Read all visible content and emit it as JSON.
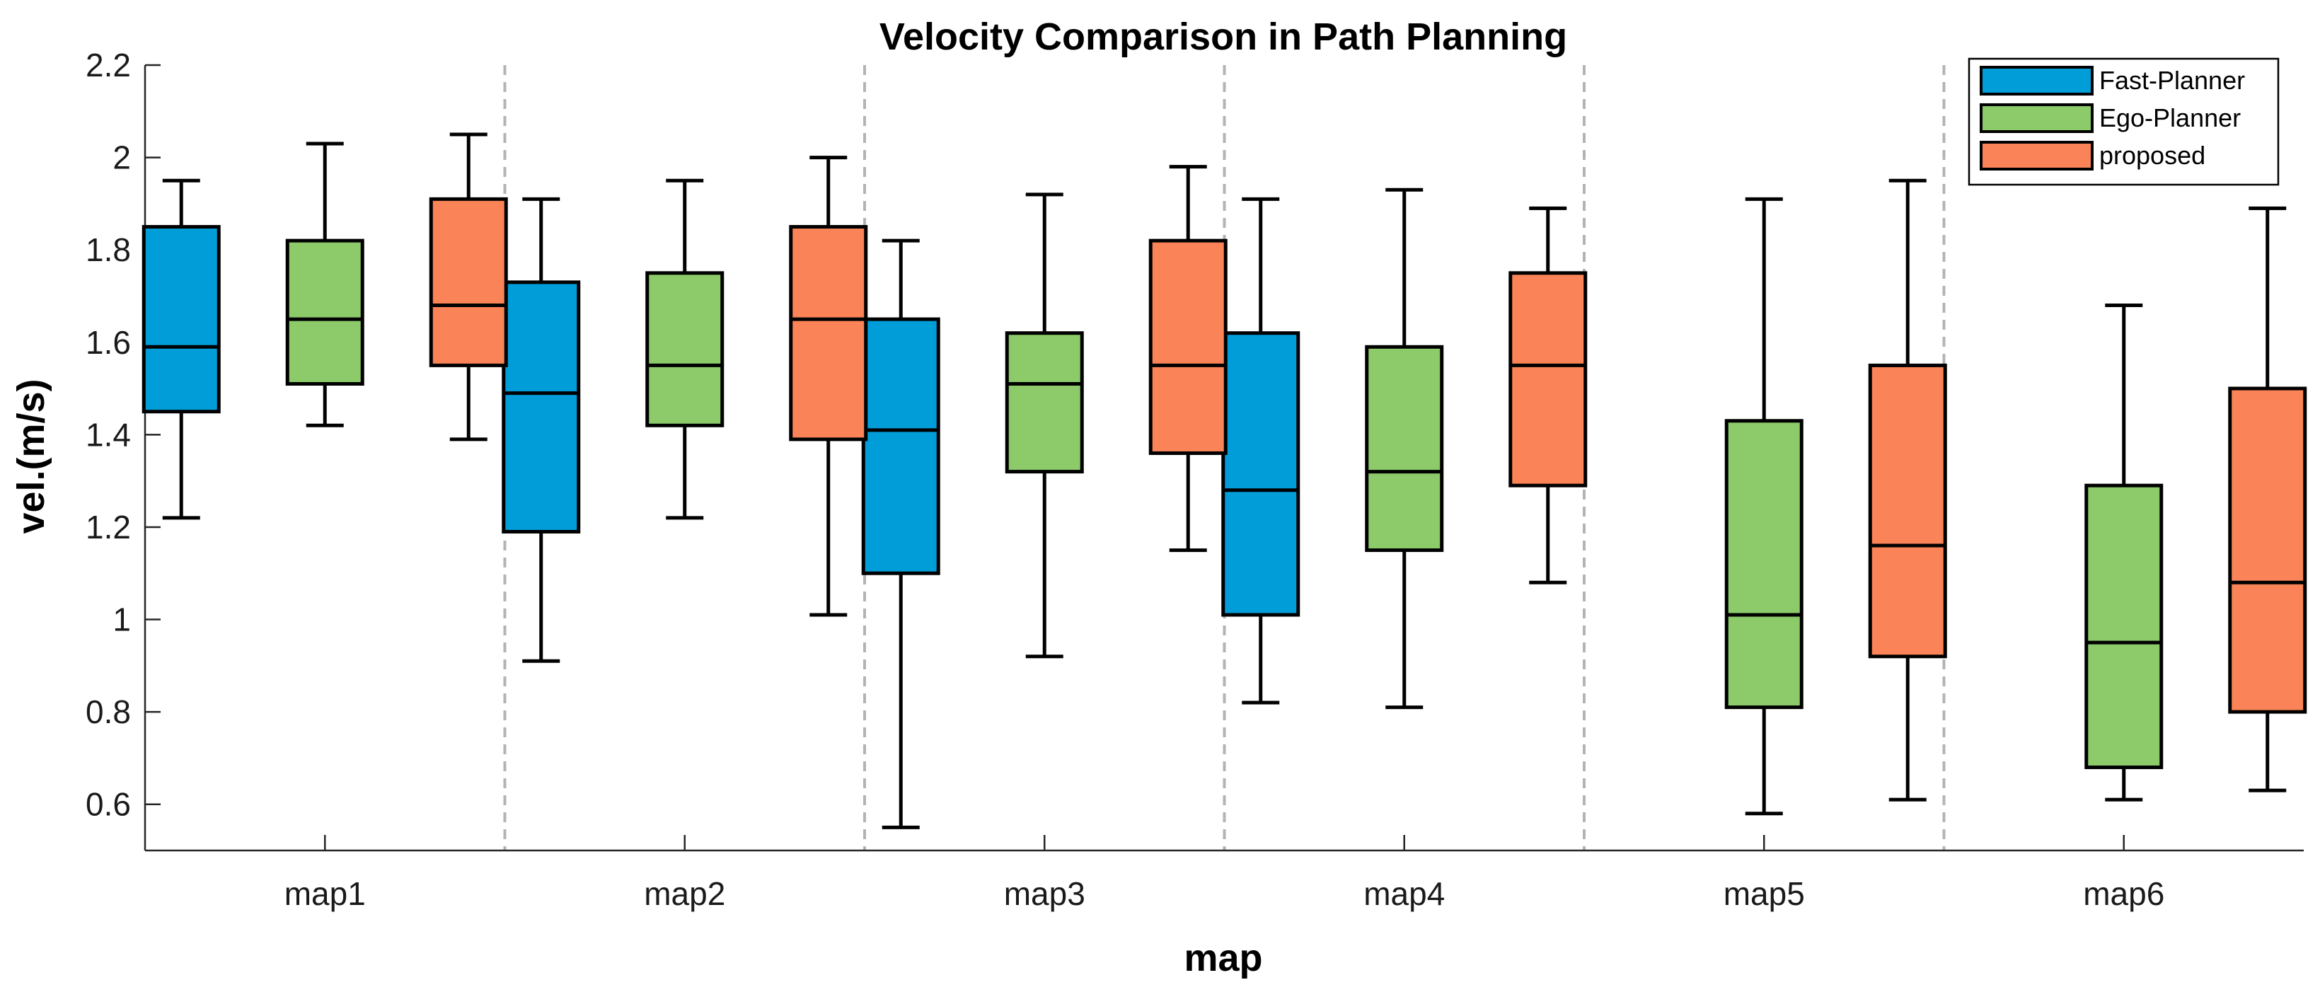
{
  "chart_data": {
    "type": "box",
    "title": "Velocity Comparison in Path Planning",
    "xlabel": "map",
    "ylabel": "vel.(m/s)",
    "ylim": [
      0.5,
      2.2
    ],
    "yticks": [
      0.6,
      0.8,
      1,
      1.2,
      1.4,
      1.6,
      1.8,
      2,
      2.2
    ],
    "ytick_labels": [
      "0.6",
      "0.8",
      "1",
      "1.2",
      "1.4",
      "1.6",
      "1.8",
      "2",
      "2.2"
    ],
    "categories": [
      "map1",
      "map2",
      "map3",
      "map4",
      "map5",
      "map6"
    ],
    "legend_position": "top-right",
    "series": [
      {
        "name": "Fast-Planner",
        "color": "#009DD9",
        "boxes": [
          {
            "min": 1.22,
            "q1": 1.45,
            "median": 1.59,
            "q3": 1.85,
            "max": 1.95
          },
          {
            "min": 0.91,
            "q1": 1.19,
            "median": 1.49,
            "q3": 1.73,
            "max": 1.91
          },
          {
            "min": 0.55,
            "q1": 1.1,
            "median": 1.41,
            "q3": 1.65,
            "max": 1.82
          },
          {
            "min": 0.82,
            "q1": 1.01,
            "median": 1.28,
            "q3": 1.62,
            "max": 1.91
          },
          null,
          null
        ]
      },
      {
        "name": "Ego-Planner",
        "color": "#8CCA6A",
        "boxes": [
          {
            "min": 1.42,
            "q1": 1.51,
            "median": 1.65,
            "q3": 1.82,
            "max": 2.03
          },
          {
            "min": 1.22,
            "q1": 1.42,
            "median": 1.55,
            "q3": 1.75,
            "max": 1.95
          },
          {
            "min": 0.92,
            "q1": 1.32,
            "median": 1.51,
            "q3": 1.62,
            "max": 1.92
          },
          {
            "min": 0.81,
            "q1": 1.15,
            "median": 1.32,
            "q3": 1.59,
            "max": 1.93
          },
          {
            "min": 0.58,
            "q1": 0.81,
            "median": 1.01,
            "q3": 1.43,
            "max": 1.91
          },
          {
            "min": 0.61,
            "q1": 0.68,
            "median": 0.95,
            "q3": 1.29,
            "max": 1.68
          }
        ]
      },
      {
        "name": "proposed",
        "color": "#FA8457",
        "boxes": [
          {
            "min": 1.39,
            "q1": 1.55,
            "median": 1.68,
            "q3": 1.91,
            "max": 2.05
          },
          {
            "min": 1.01,
            "q1": 1.39,
            "median": 1.65,
            "q3": 1.85,
            "max": 2.0
          },
          {
            "min": 1.15,
            "q1": 1.36,
            "median": 1.55,
            "q3": 1.82,
            "max": 1.98
          },
          {
            "min": 1.08,
            "q1": 1.29,
            "median": 1.55,
            "q3": 1.75,
            "max": 1.89
          },
          {
            "min": 0.61,
            "q1": 0.92,
            "median": 1.16,
            "q3": 1.55,
            "max": 1.95
          },
          {
            "min": 0.63,
            "q1": 0.8,
            "median": 1.08,
            "q3": 1.5,
            "max": 1.89
          }
        ]
      }
    ]
  }
}
